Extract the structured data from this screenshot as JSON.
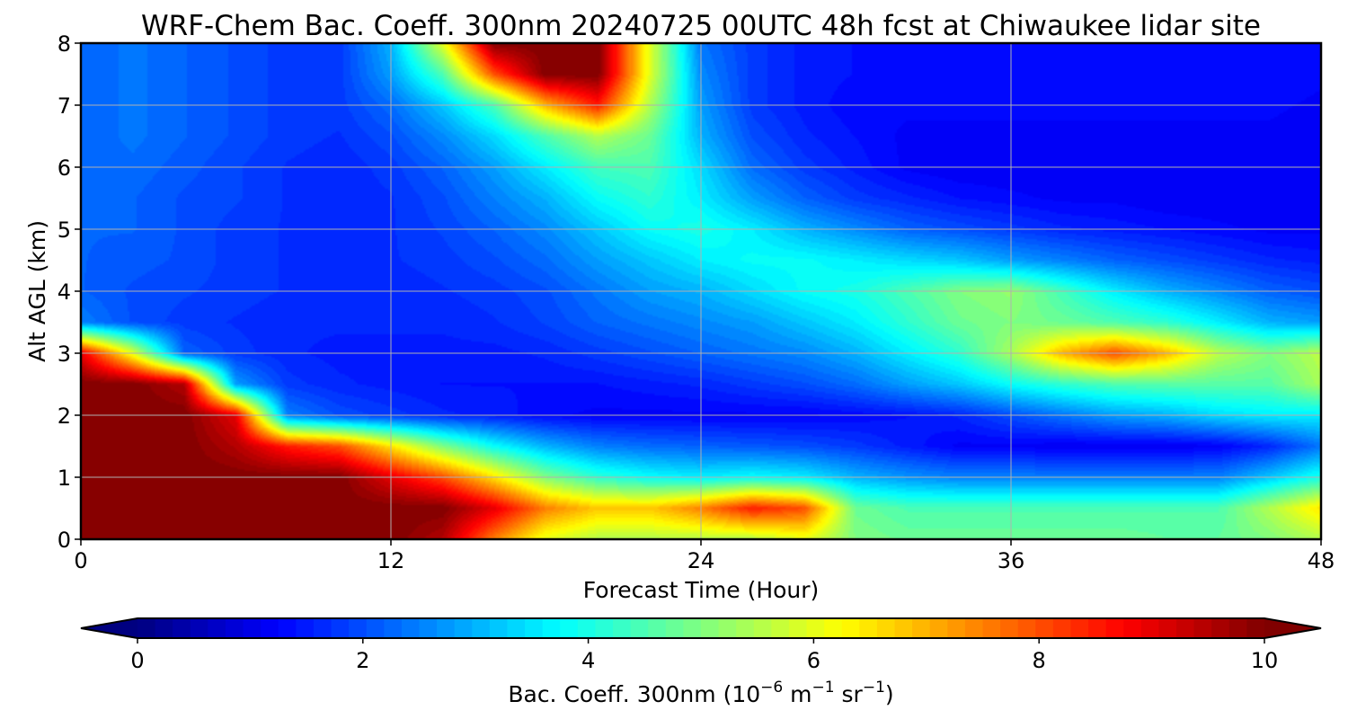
{
  "chart_data": {
    "type": "heatmap",
    "title": "WRF-Chem Bac. Coeff. 300nm  20240725 00UTC 48h fcst at Chiwaukee lidar site",
    "xlabel": "Forecast Time (Hour)",
    "ylabel": "Alt AGL (km)",
    "xlim": [
      0,
      48
    ],
    "ylim": [
      0,
      8
    ],
    "xticks": [
      0,
      12,
      24,
      36,
      48
    ],
    "yticks": [
      0,
      1,
      2,
      3,
      4,
      5,
      6,
      7,
      8
    ],
    "grid": true,
    "colormap": "jet",
    "colorbar": {
      "label_main": "Bac. Coeff. 300nm  (10",
      "label_exp1": "−6",
      "label_mid": " m",
      "label_exp2": "−1",
      "label_end": " sr",
      "label_exp3": "−1",
      "label_close": ")",
      "range": [
        0,
        10
      ],
      "ticks": [
        0,
        2,
        4,
        6,
        8,
        10
      ],
      "extend": "both",
      "orientation": "horizontal"
    },
    "x": [
      0,
      2,
      4,
      6,
      8,
      10,
      12,
      14,
      16,
      18,
      20,
      22,
      24,
      26,
      28,
      30,
      32,
      34,
      36,
      38,
      40,
      42,
      44,
      46,
      48
    ],
    "y": [
      0,
      0.5,
      1,
      1.5,
      2,
      2.5,
      3,
      3.5,
      4,
      4.5,
      5,
      5.5,
      6,
      6.5,
      7,
      7.5,
      8
    ],
    "z": [
      [
        10,
        10,
        10,
        10,
        10,
        10,
        10,
        9.5,
        7.5,
        6,
        5.5,
        5.5,
        5.5,
        5.5,
        6,
        5,
        4.8,
        4.8,
        4.8,
        4.8,
        4.8,
        4.7,
        4.7,
        5,
        5.5
      ],
      [
        10,
        10,
        10,
        10,
        10,
        10,
        10,
        10,
        9,
        7.5,
        6.8,
        6.8,
        7.5,
        8.5,
        8,
        4.8,
        4.5,
        4.5,
        4.5,
        4.5,
        4.5,
        4.5,
        4.5,
        5.5,
        6.5
      ],
      [
        10,
        10,
        10,
        10,
        10,
        10,
        9,
        8,
        6.5,
        5,
        4.2,
        3.8,
        3.6,
        3.8,
        3.6,
        3,
        2.7,
        2.5,
        2.5,
        2.5,
        2.5,
        2.5,
        2.5,
        3.2,
        4
      ],
      [
        10,
        10,
        10,
        9.5,
        8.5,
        8,
        6.5,
        5,
        3.8,
        3,
        2.5,
        2.3,
        2.2,
        2.1,
        2,
        1.8,
        1.5,
        1.2,
        1.2,
        1.1,
        1.1,
        1.1,
        1.2,
        1.6,
        2.4
      ],
      [
        10,
        10,
        10,
        9,
        2.5,
        2,
        1.8,
        1.6,
        1.5,
        1.3,
        1.2,
        1.2,
        1.2,
        1.2,
        1.2,
        1.3,
        1.4,
        1.6,
        2,
        2.4,
        2.8,
        3,
        3.4,
        3.6,
        3.6
      ],
      [
        10,
        10,
        9.5,
        2.8,
        1.8,
        1.6,
        1.5,
        1.4,
        1.4,
        1.4,
        1.4,
        1.5,
        1.6,
        1.8,
        2,
        2.3,
        2.8,
        3.2,
        3.8,
        4.2,
        4.5,
        4.6,
        4.6,
        4.6,
        5.4
      ],
      [
        9,
        6,
        2.2,
        1.8,
        1.6,
        1.5,
        1.5,
        1.5,
        1.5,
        1.6,
        1.8,
        2,
        2.2,
        2.4,
        2.6,
        3,
        3.6,
        4.2,
        5.4,
        7,
        8,
        7,
        5.6,
        5,
        5.6
      ],
      [
        2.5,
        2,
        1.8,
        1.7,
        1.6,
        1.6,
        1.6,
        1.6,
        1.7,
        1.9,
        2.2,
        2.4,
        2.6,
        2.8,
        3.2,
        3.6,
        4.2,
        4.8,
        5,
        4.8,
        4.5,
        4.2,
        3.6,
        3,
        2.8
      ],
      [
        2.2,
        2,
        1.9,
        1.8,
        1.7,
        1.6,
        1.6,
        1.7,
        1.8,
        2,
        2.4,
        2.8,
        3,
        3.4,
        3.8,
        4,
        4.5,
        5,
        5.2,
        4.4,
        3.6,
        3,
        2.6,
        2.2,
        2
      ],
      [
        2.2,
        2.1,
        2,
        1.8,
        1.7,
        1.6,
        1.7,
        1.8,
        2,
        2.3,
        2.8,
        3.2,
        3.6,
        3.8,
        3.8,
        3.6,
        3.4,
        3.2,
        2.8,
        2.5,
        2.2,
        2,
        1.8,
        1.6,
        1.5
      ],
      [
        2.2,
        2.2,
        2,
        1.8,
        1.7,
        1.6,
        1.7,
        1.9,
        2.2,
        2.6,
        3.2,
        3.8,
        4,
        3.6,
        3,
        2.6,
        2.2,
        2,
        1.8,
        1.6,
        1.5,
        1.4,
        1.3,
        1.2,
        1.2
      ],
      [
        2.2,
        2.2,
        2,
        1.9,
        1.7,
        1.6,
        1.7,
        2,
        2.5,
        3,
        3.8,
        4.2,
        3.6,
        2.8,
        2.2,
        1.8,
        1.6,
        1.4,
        1.3,
        1.2,
        1.2,
        1.1,
        1.1,
        1.1,
        1.1
      ],
      [
        2.2,
        2.3,
        2.1,
        1.9,
        1.7,
        1.6,
        1.8,
        2.2,
        2.8,
        3.6,
        4.4,
        4.5,
        3.4,
        2.3,
        1.8,
        1.5,
        1.2,
        1.1,
        1.1,
        1.1,
        1.1,
        1.1,
        1.1,
        1.1,
        1.1
      ],
      [
        2.2,
        2.4,
        2.2,
        2,
        1.8,
        1.7,
        2,
        2.6,
        3.4,
        4.5,
        5.5,
        4.8,
        3,
        2,
        1.6,
        1.4,
        1.2,
        1.2,
        1.2,
        1.2,
        1.2,
        1.2,
        1.2,
        1.2,
        1.1
      ],
      [
        2.2,
        2.4,
        2.2,
        2,
        1.8,
        1.8,
        2.3,
        3.2,
        4.5,
        7,
        8.5,
        5.5,
        2.8,
        1.8,
        1.5,
        1.3,
        1.3,
        1.3,
        1.3,
        1.3,
        1.3,
        1.3,
        1.3,
        1.3,
        1.2
      ],
      [
        2.2,
        2.4,
        2.2,
        2,
        1.8,
        1.8,
        2.8,
        4.5,
        8,
        10,
        10,
        6,
        2.6,
        1.8,
        1.5,
        1.4,
        1.4,
        1.4,
        1.4,
        1.4,
        1.4,
        1.4,
        1.4,
        1.4,
        1.3
      ],
      [
        2.2,
        2.4,
        2.2,
        2,
        1.8,
        1.8,
        3,
        6,
        10,
        10,
        10,
        6,
        2.4,
        1.8,
        1.5,
        1.4,
        1.4,
        1.4,
        1.4,
        1.4,
        1.4,
        1.4,
        1.4,
        1.4,
        1.4
      ]
    ]
  }
}
